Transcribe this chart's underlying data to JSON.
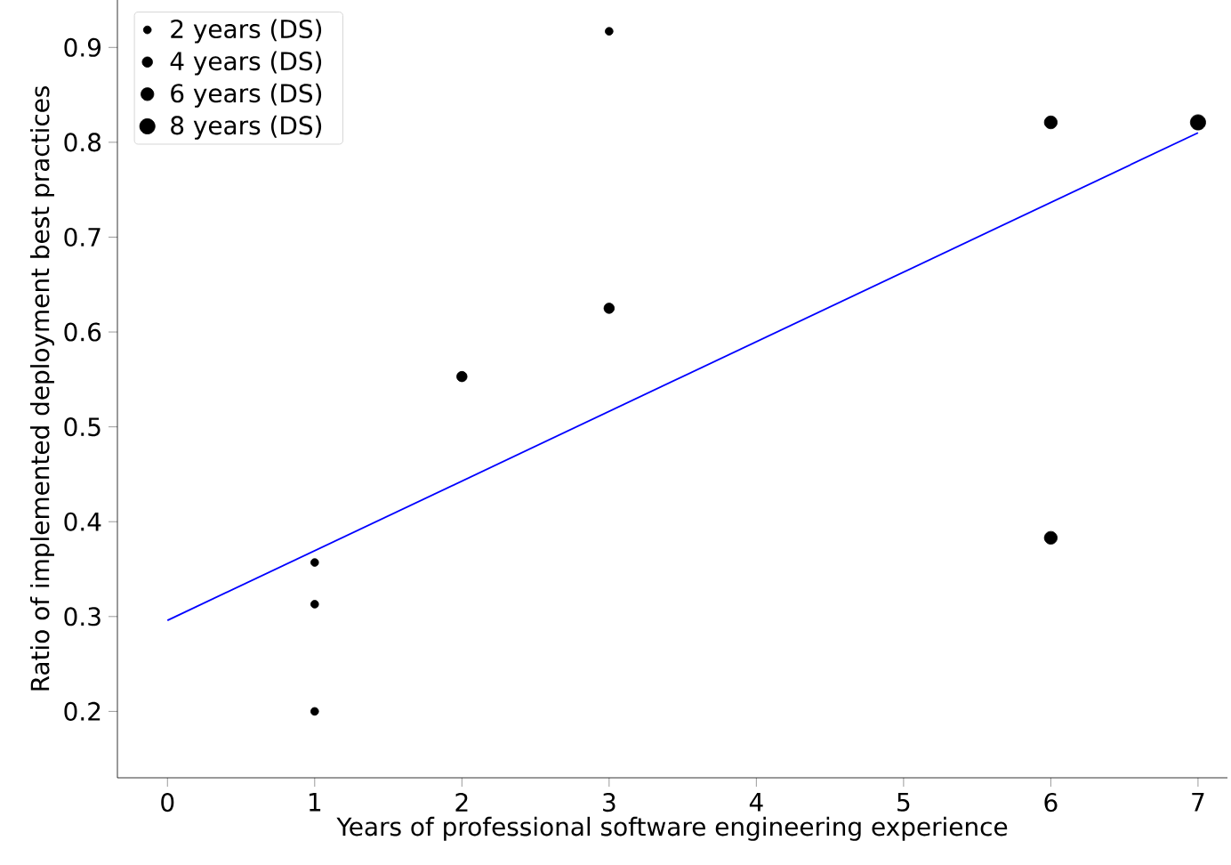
{
  "chart_data": {
    "type": "scatter",
    "xlabel": "Years of professional software engineering experience",
    "ylabel": "Ratio of implemented deployment best practices",
    "xlim": [
      -0.34,
      7.2
    ],
    "ylim": [
      0.13,
      0.95
    ],
    "xticks": [
      0,
      1,
      2,
      3,
      4,
      5,
      6,
      7
    ],
    "yticks": [
      0.2,
      0.3,
      0.4,
      0.5,
      0.6,
      0.7,
      0.8,
      0.9
    ],
    "legend": "top left",
    "grid": false,
    "series": [
      {
        "name": "2 years (DS)",
        "marker": "circle",
        "color": "#000000",
        "x": [
          1,
          1,
          1,
          3
        ],
        "values": [
          0.2,
          0.313,
          0.357,
          0.917
        ]
      },
      {
        "name": "4 years (DS)",
        "marker": "circle",
        "color": "#000000",
        "x": [
          2,
          3
        ],
        "values": [
          0.553,
          0.625
        ]
      },
      {
        "name": "6 years (DS)",
        "marker": "circle",
        "color": "#000000",
        "x": [
          6,
          6
        ],
        "values": [
          0.383,
          0.821
        ]
      },
      {
        "name": "8 years (DS)",
        "marker": "circle",
        "color": "#000000",
        "x": [
          7
        ],
        "values": [
          0.821
        ]
      },
      {
        "type": "line",
        "marker": "none",
        "color": "#0000ff",
        "x": [
          0,
          7
        ],
        "values": [
          0.296,
          0.81
        ]
      }
    ]
  }
}
